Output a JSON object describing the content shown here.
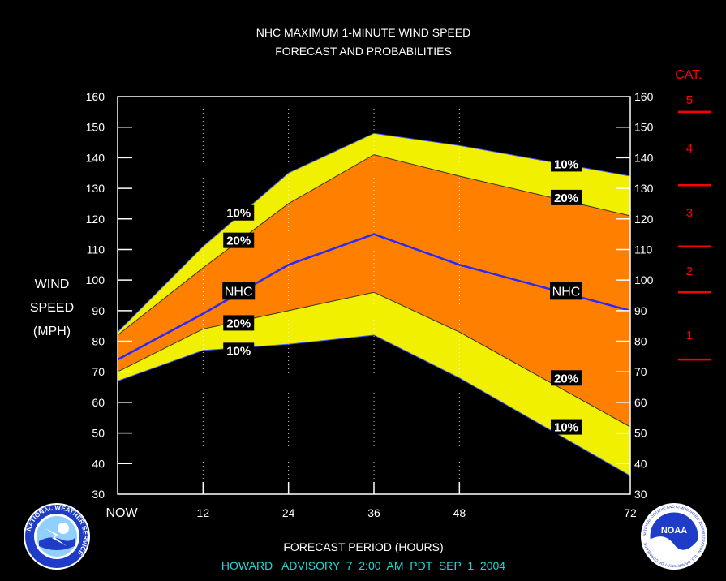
{
  "title_line1": "NHC MAXIMUM 1-MINUTE WIND SPEED",
  "title_line2": "FORECAST AND PROBABILITIES",
  "footer": "HOWARD   ADVISORY  7  2:00  AM  PDT  SEP  1  2004",
  "category_header": "CAT.",
  "colors": {
    "band_10": "#f0f000",
    "band_20": "#ff8000",
    "nhc_line": "#2828ff",
    "category": "#ff0000",
    "footer": "#22d6d6",
    "text": "#ffffff"
  },
  "logos": {
    "left": "nws-logo",
    "left_text": "NATIONAL WEATHER SERVICE",
    "right": "noaa-logo",
    "right_text": "NOAA",
    "right_ring_text": "NATIONAL OCEANIC AND ATMOSPHERIC ADMINISTRATION · U.S. DEPARTMENT OF COMMERCE"
  },
  "chart_data": {
    "type": "area",
    "title": "NHC MAXIMUM 1-MINUTE WIND SPEED FORECAST AND PROBABILITIES",
    "xlabel": "FORECAST PERIOD (HOURS)",
    "ylabel": [
      "WIND",
      "SPEED",
      "(MPH)"
    ],
    "xlim": [
      0,
      72
    ],
    "ylim": [
      30,
      160
    ],
    "x_ticks": [
      {
        "value": 0,
        "label": "NOW"
      },
      {
        "value": 12,
        "label": "12"
      },
      {
        "value": 24,
        "label": "24"
      },
      {
        "value": 36,
        "label": "36"
      },
      {
        "value": 48,
        "label": "48"
      },
      {
        "value": 72,
        "label": "72"
      }
    ],
    "vertical_dotted_grid_x": [
      12,
      24,
      36,
      48
    ],
    "y_ticks": [
      30,
      40,
      50,
      60,
      70,
      80,
      90,
      100,
      110,
      120,
      130,
      140,
      150,
      160
    ],
    "x": [
      0,
      12,
      24,
      36,
      48,
      72
    ],
    "series": [
      {
        "name": "10%",
        "role": "upper",
        "values": [
          83,
          111,
          135,
          148,
          144,
          134
        ]
      },
      {
        "name": "20%",
        "role": "upper",
        "values": [
          82,
          104,
          125,
          141,
          134,
          121
        ]
      },
      {
        "name": "NHC",
        "values": [
          74,
          89,
          105,
          115,
          105,
          90
        ]
      },
      {
        "name": "20%",
        "role": "lower",
        "values": [
          70,
          84,
          90,
          96,
          83,
          52
        ]
      },
      {
        "name": "10%",
        "role": "lower",
        "values": [
          67,
          77,
          79,
          82,
          68,
          36
        ]
      }
    ],
    "labels": [
      {
        "text": "10%",
        "x": 17,
        "y": 122
      },
      {
        "text": "20%",
        "x": 17,
        "y": 113
      },
      {
        "text": "NHC",
        "x": 17,
        "y": 96.5
      },
      {
        "text": "20%",
        "x": 17,
        "y": 86
      },
      {
        "text": "10%",
        "x": 17,
        "y": 77
      },
      {
        "text": "10%",
        "x": 63,
        "y": 138
      },
      {
        "text": "20%",
        "x": 63,
        "y": 127
      },
      {
        "text": "NHC",
        "x": 63,
        "y": 96.5
      },
      {
        "text": "20%",
        "x": 63,
        "y": 68
      },
      {
        "text": "10%",
        "x": 63,
        "y": 52
      }
    ],
    "categories": [
      {
        "label": "1",
        "y": 82
      },
      {
        "label": "2",
        "y": 103
      },
      {
        "label": "3",
        "y": 122
      },
      {
        "label": "4",
        "y": 143
      },
      {
        "label": "5",
        "y": 159
      }
    ],
    "category_thresholds": [
      74,
      96,
      111,
      131,
      155
    ]
  }
}
